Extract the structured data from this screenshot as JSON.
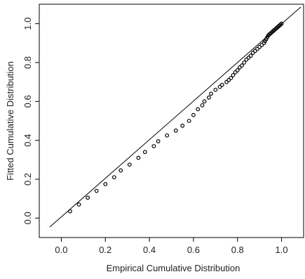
{
  "chart_data": {
    "type": "scatter",
    "title": "",
    "xlabel": "Empirical Cumulative Distribution",
    "ylabel": "Fitted Cumulative Distribution",
    "xlim": [
      -0.1,
      1.1
    ],
    "ylim": [
      -0.1,
      1.1
    ],
    "x_ticks": [
      "0.0",
      "0.2",
      "0.4",
      "0.6",
      "0.8",
      "1.0"
    ],
    "y_ticks": [
      "0.0",
      "0.2",
      "0.4",
      "0.6",
      "0.8",
      "1.0"
    ],
    "reference_line": {
      "from": [
        -0.1,
        -0.1
      ],
      "to": [
        1.1,
        1.1
      ]
    },
    "grid": false,
    "legend": "none",
    "marker": "open-circle",
    "points": {
      "x": [
        0.04,
        0.08,
        0.12,
        0.16,
        0.2,
        0.24,
        0.27,
        0.31,
        0.35,
        0.38,
        0.42,
        0.44,
        0.48,
        0.52,
        0.55,
        0.58,
        0.6,
        0.62,
        0.64,
        0.65,
        0.67,
        0.68,
        0.7,
        0.72,
        0.73,
        0.75,
        0.76,
        0.77,
        0.78,
        0.79,
        0.8,
        0.81,
        0.82,
        0.83,
        0.84,
        0.85,
        0.86,
        0.87,
        0.88,
        0.89,
        0.9,
        0.91,
        0.92,
        0.925,
        0.93,
        0.935,
        0.94,
        0.945,
        0.95,
        0.955,
        0.96,
        0.965,
        0.97,
        0.975,
        0.98,
        0.985,
        0.99,
        0.995,
        1.0
      ],
      "y": [
        0.035,
        0.07,
        0.105,
        0.14,
        0.175,
        0.21,
        0.245,
        0.275,
        0.31,
        0.34,
        0.37,
        0.395,
        0.425,
        0.45,
        0.475,
        0.5,
        0.53,
        0.56,
        0.58,
        0.6,
        0.62,
        0.64,
        0.66,
        0.675,
        0.685,
        0.7,
        0.71,
        0.72,
        0.735,
        0.75,
        0.76,
        0.775,
        0.785,
        0.8,
        0.815,
        0.825,
        0.835,
        0.85,
        0.86,
        0.87,
        0.88,
        0.89,
        0.9,
        0.91,
        0.92,
        0.93,
        0.94,
        0.945,
        0.95,
        0.955,
        0.96,
        0.965,
        0.97,
        0.975,
        0.98,
        0.985,
        0.99,
        0.995,
        1.0
      ]
    }
  }
}
